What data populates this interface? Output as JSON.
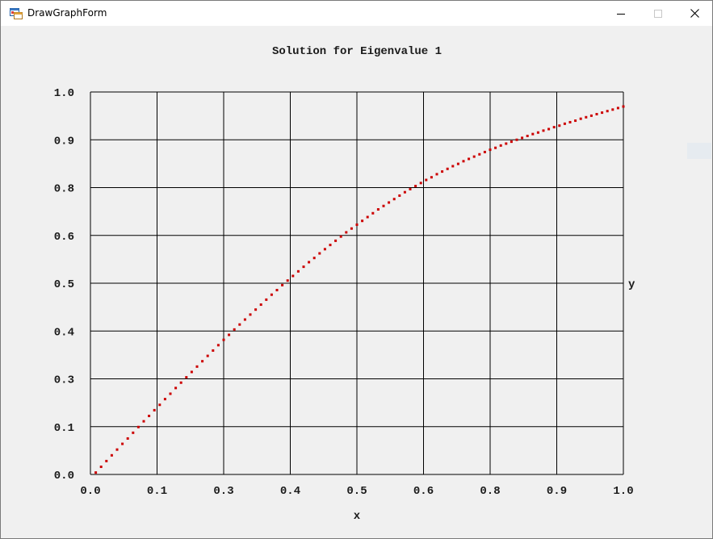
{
  "window": {
    "title": "DrawGraphForm"
  },
  "chart_data": {
    "type": "scatter",
    "title": "Solution for Eigenvalue 1",
    "xlabel": "x",
    "ylabel": "y",
    "xlim": [
      0.0,
      1.0
    ],
    "ylim": [
      0.0,
      1.0
    ],
    "grid": true,
    "x_tick_labels": [
      "0.0",
      "0.1",
      "0.3",
      "0.4",
      "0.5",
      "0.6",
      "0.8",
      "0.9",
      "1.0"
    ],
    "y_tick_labels": [
      "0.0",
      "0.1",
      "0.3",
      "0.4",
      "0.5",
      "0.6",
      "0.8",
      "0.9",
      "1.0"
    ],
    "marker_color": "#cc0000",
    "x": [
      0.01,
      0.02,
      0.03,
      0.04,
      0.05,
      0.06,
      0.07,
      0.08,
      0.09,
      0.1,
      0.11,
      0.12,
      0.13,
      0.14,
      0.15,
      0.16,
      0.17,
      0.18,
      0.19,
      0.2,
      0.21,
      0.22,
      0.23,
      0.24,
      0.25,
      0.26,
      0.27,
      0.28,
      0.29,
      0.3,
      0.31,
      0.32,
      0.33,
      0.34,
      0.35,
      0.36,
      0.37,
      0.38,
      0.39,
      0.4,
      0.41,
      0.42,
      0.43,
      0.44,
      0.45,
      0.46,
      0.47,
      0.48,
      0.49,
      0.5,
      0.51,
      0.52,
      0.53,
      0.54,
      0.55,
      0.56,
      0.57,
      0.58,
      0.59,
      0.6,
      0.61,
      0.62,
      0.63,
      0.64,
      0.65,
      0.66,
      0.67,
      0.68,
      0.69,
      0.7,
      0.71,
      0.72,
      0.73,
      0.74,
      0.75,
      0.76,
      0.77,
      0.78,
      0.79,
      0.8,
      0.81,
      0.82,
      0.83,
      0.84,
      0.85,
      0.86,
      0.87,
      0.88,
      0.89,
      0.9,
      0.91,
      0.92,
      0.93,
      0.94,
      0.95,
      0.96,
      0.97,
      0.98,
      0.99,
      1.0
    ],
    "y": [
      0.005,
      0.02,
      0.035,
      0.05,
      0.065,
      0.08,
      0.094,
      0.109,
      0.124,
      0.139,
      0.153,
      0.168,
      0.182,
      0.197,
      0.211,
      0.226,
      0.24,
      0.254,
      0.268,
      0.282,
      0.296,
      0.31,
      0.324,
      0.338,
      0.352,
      0.365,
      0.379,
      0.392,
      0.405,
      0.418,
      0.431,
      0.444,
      0.457,
      0.47,
      0.482,
      0.495,
      0.507,
      0.519,
      0.531,
      0.543,
      0.555,
      0.566,
      0.578,
      0.589,
      0.6,
      0.611,
      0.622,
      0.633,
      0.643,
      0.653,
      0.663,
      0.673,
      0.683,
      0.693,
      0.702,
      0.711,
      0.72,
      0.729,
      0.738,
      0.746,
      0.754,
      0.762,
      0.77,
      0.777,
      0.785,
      0.792,
      0.799,
      0.806,
      0.812,
      0.819,
      0.825,
      0.831,
      0.837,
      0.843,
      0.849,
      0.854,
      0.86,
      0.865,
      0.87,
      0.875,
      0.88,
      0.885,
      0.89,
      0.894,
      0.899,
      0.903,
      0.908,
      0.912,
      0.917,
      0.921,
      0.925,
      0.93,
      0.934,
      0.938,
      0.942,
      0.946,
      0.95,
      0.954,
      0.958,
      0.962
    ]
  }
}
